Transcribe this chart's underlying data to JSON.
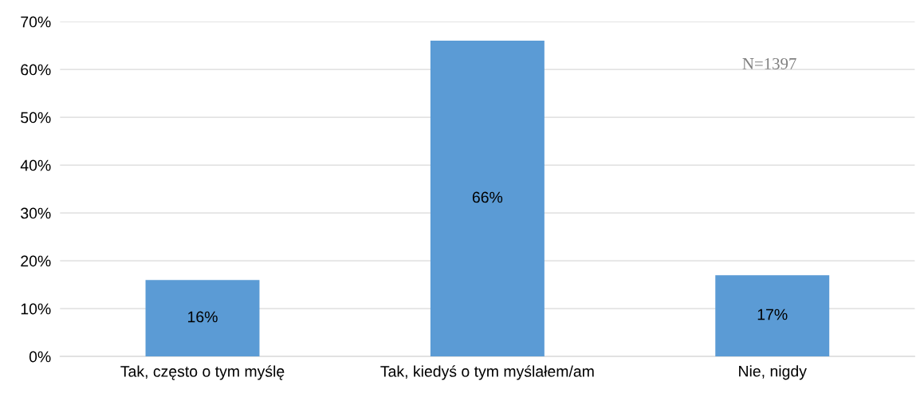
{
  "chart_data": {
    "type": "bar",
    "categories": [
      "Tak, często o tym myślę",
      "Tak, kiedyś o tym myślałem/am",
      "Nie, nigdy"
    ],
    "values": [
      16,
      66,
      17
    ],
    "value_labels": [
      "16%",
      "66%",
      "17%"
    ],
    "color": "#5b9bd5",
    "ylim": [
      0,
      70
    ],
    "yticks": [
      {
        "value": 0,
        "label": "0%"
      },
      {
        "value": 10,
        "label": "10%"
      },
      {
        "value": 20,
        "label": "20%"
      },
      {
        "value": 30,
        "label": "30%"
      },
      {
        "value": 40,
        "label": "40%"
      },
      {
        "value": 50,
        "label": "50%"
      },
      {
        "value": 60,
        "label": "60%"
      },
      {
        "value": 70,
        "label": "70%"
      }
    ],
    "grid": "y",
    "annotations": [
      "N=1397"
    ]
  }
}
